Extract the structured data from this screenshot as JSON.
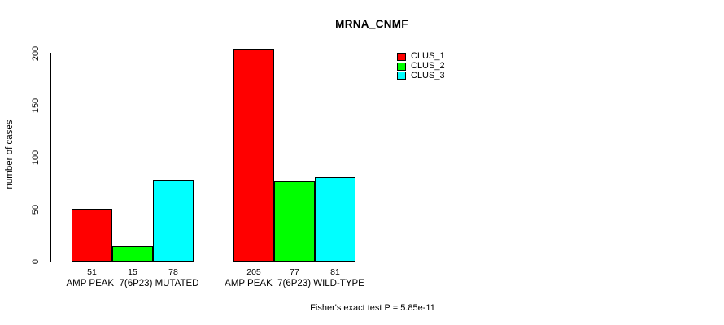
{
  "chart_data": {
    "type": "bar",
    "title": "MRNA_CNMF",
    "ylabel": "number of cases",
    "xlabel": "",
    "ylim": [
      0,
      200
    ],
    "yticks": [
      0,
      50,
      100,
      150,
      200
    ],
    "grid": false,
    "legend_position": "top-right-outside-plot",
    "categories": [
      "AMP PEAK  7(6P23) MUTATED",
      "AMP PEAK  7(6P23) WILD-TYPE"
    ],
    "series": [
      {
        "name": "CLUS_1",
        "color": "#FF0000",
        "values": [
          51,
          205
        ]
      },
      {
        "name": "CLUS_2",
        "color": "#00FF00",
        "values": [
          15,
          77
        ]
      },
      {
        "name": "CLUS_3",
        "color": "#00FFFF",
        "values": [
          78,
          81
        ]
      }
    ],
    "bar_value_labels": [
      [
        51,
        15,
        78
      ],
      [
        205,
        77,
        81
      ]
    ],
    "annotation": "Fisher's exact test P = 5.85e-11",
    "axis_color": "#000000",
    "background_color": "#FFFFFF"
  }
}
